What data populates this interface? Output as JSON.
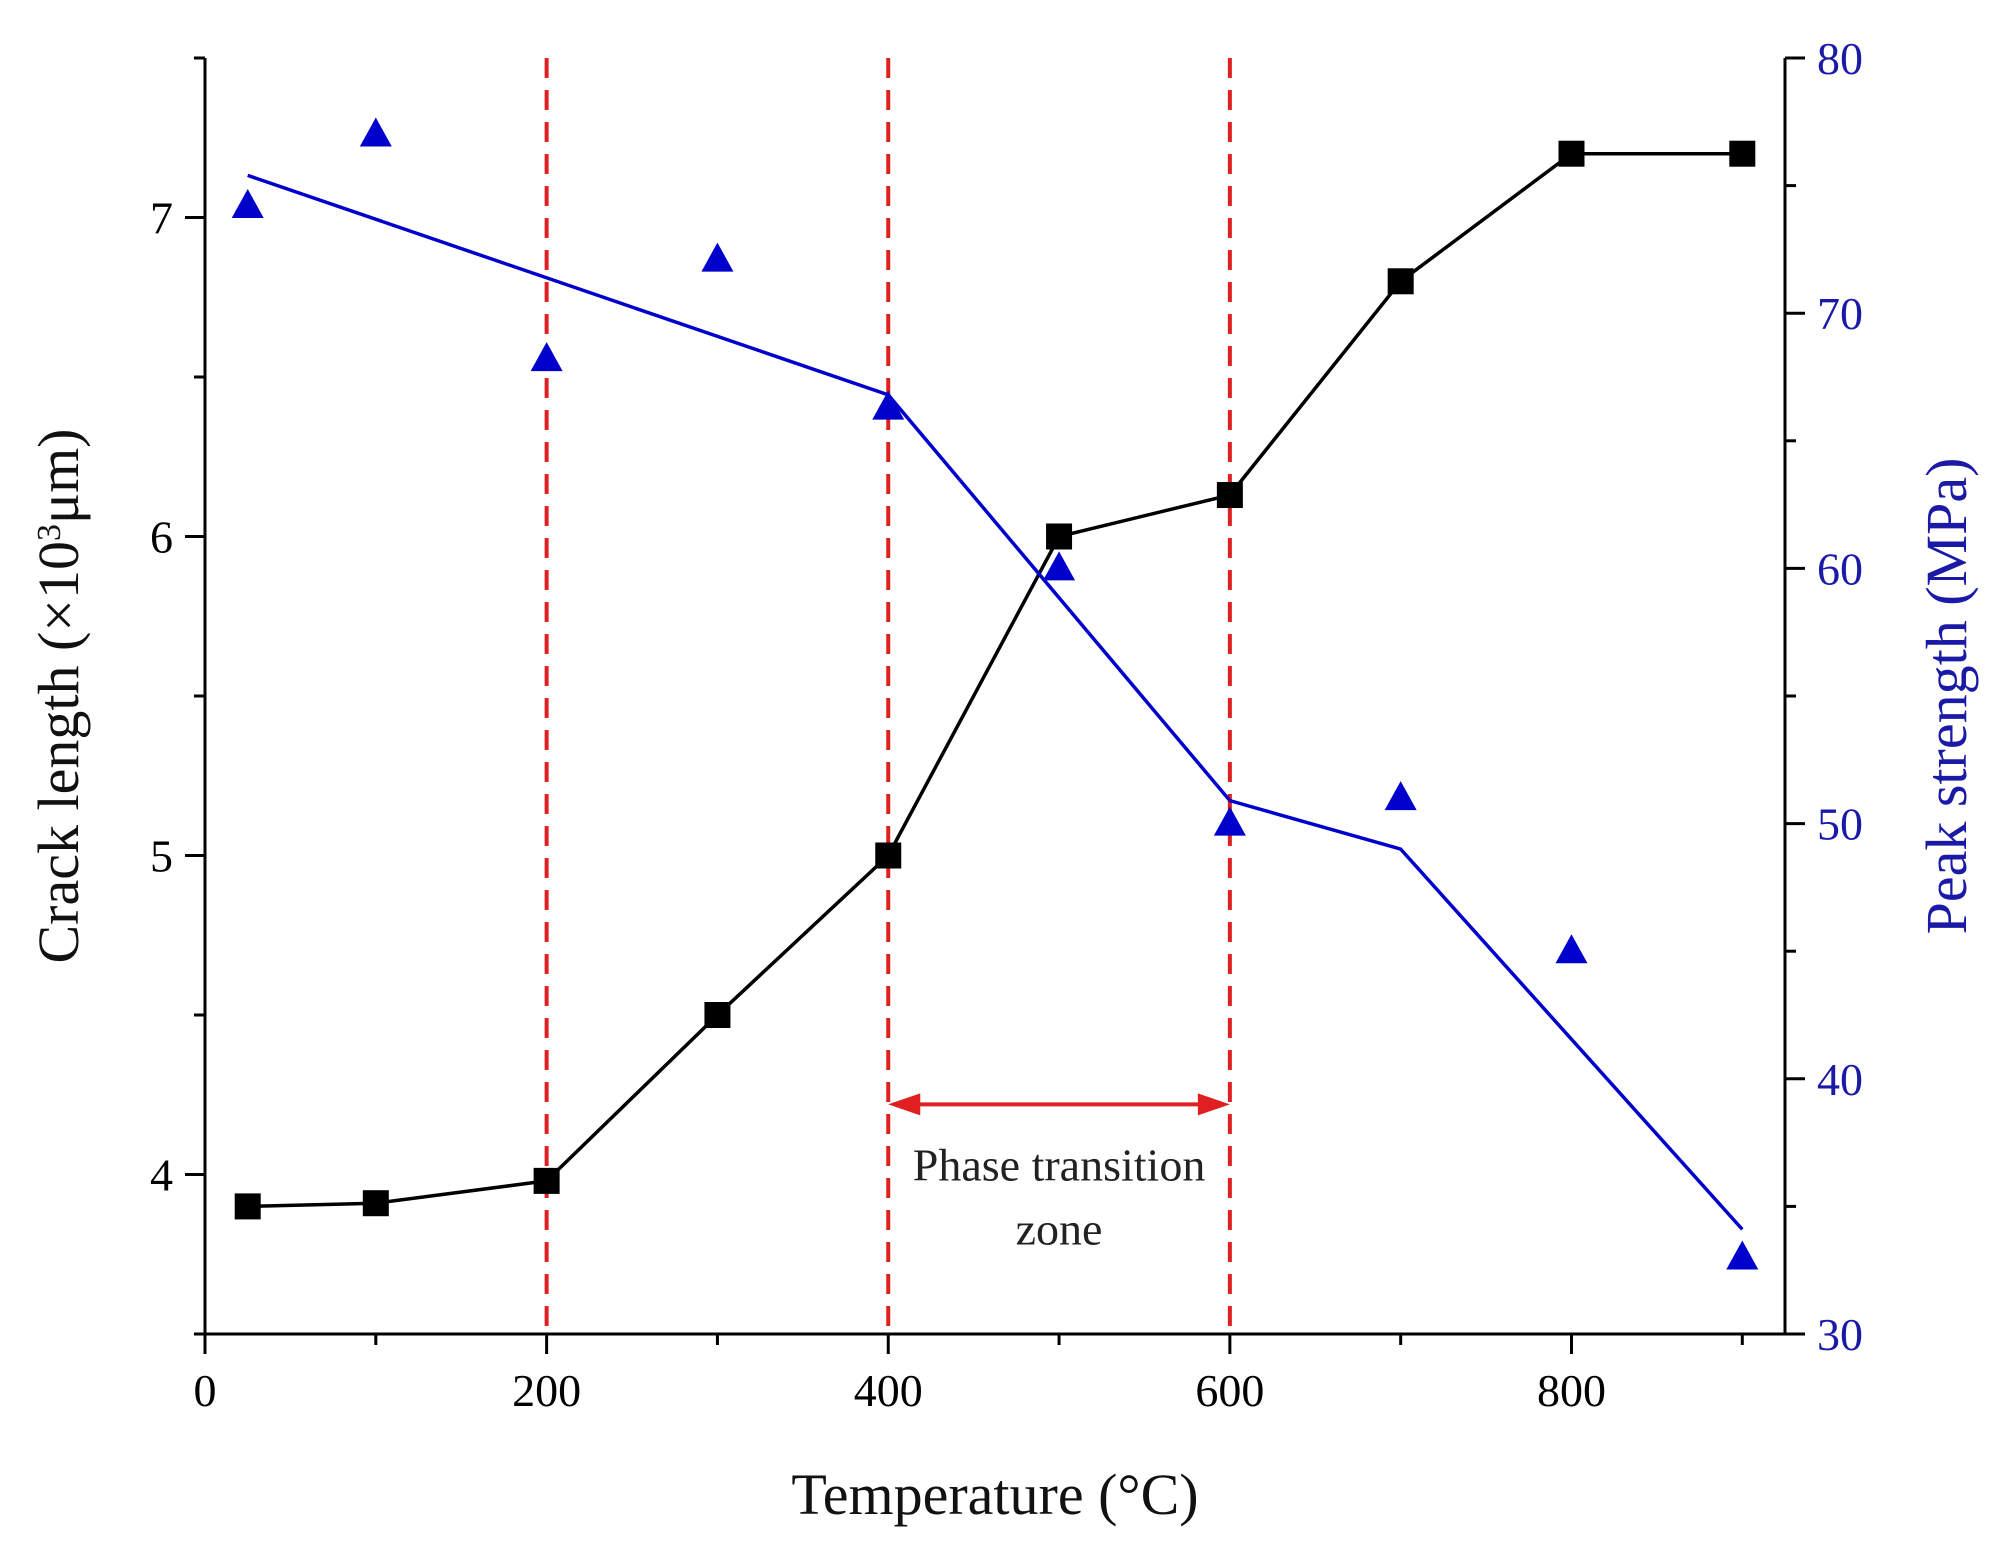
{
  "colors": {
    "crack": "#000000",
    "strength": "#0000cc",
    "strength_axis": "#1a1aa6",
    "guide": "#e02020",
    "axis": "#000000"
  },
  "chart_data": {
    "type": "line",
    "xlabel": "Temperature (°C)",
    "ylabel_left": {
      "prefix": "Crack length (×10",
      "sup": "3",
      "suffix": "μm)"
    },
    "ylabel_right": "Peak strength (MPa)",
    "xlim": [
      0,
      925
    ],
    "ylim_left": [
      3.5,
      7.5
    ],
    "ylim_right": [
      30,
      80
    ],
    "x_ticks": [
      0,
      200,
      400,
      600,
      800
    ],
    "y_left_ticks": [
      4,
      5,
      6,
      7
    ],
    "y_right_ticks": [
      30,
      40,
      50,
      60,
      70,
      80
    ],
    "series": [
      {
        "name": "Crack length",
        "axis": "left",
        "marker": "square",
        "x": [
          25,
          100,
          200,
          300,
          400,
          500,
          600,
          700,
          800,
          900
        ],
        "values": [
          3.9,
          3.91,
          3.98,
          4.5,
          5.0,
          6.0,
          6.13,
          6.8,
          7.2,
          7.2
        ]
      },
      {
        "name": "Peak strength",
        "axis": "right",
        "marker": "triangle",
        "x": [
          25,
          100,
          200,
          300,
          400,
          500,
          600,
          700,
          800,
          900
        ],
        "values": [
          74.2,
          77.0,
          68.2,
          72.1,
          66.3,
          60.0,
          50.0,
          51.0,
          45.0,
          33.0
        ]
      },
      {
        "name": "Peak strength trend",
        "axis": "right",
        "marker": "none",
        "x": [
          25,
          400,
          600,
          700,
          900
        ],
        "values": [
          75.4,
          66.8,
          50.9,
          49.0,
          34.1
        ]
      }
    ],
    "reference_lines_x": [
      200,
      400,
      600
    ],
    "annotation": {
      "line1": "Phase transition",
      "line2": "zone",
      "from": 400,
      "to": 600
    }
  }
}
